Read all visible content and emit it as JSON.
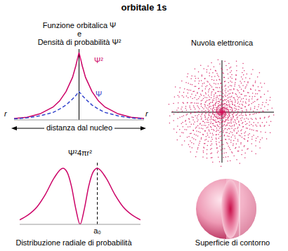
{
  "title": "orbitale 1s",
  "chart_data": [
    {
      "type": "line",
      "title": [
        "Funzione orbitalica Ψ",
        "e",
        "Densità di probabilità Ψ²"
      ],
      "xlabel": "distanza dal nucleo",
      "x_end_label": "r",
      "x": [
        -5,
        -4,
        -3,
        -2,
        -1.5,
        -1,
        -0.5,
        -0.25,
        0,
        0.25,
        0.5,
        1,
        1.5,
        2,
        3,
        4,
        5
      ],
      "xlim": [
        -5,
        5
      ],
      "ylim": [
        0,
        1.05
      ],
      "tick_labels": false,
      "series": [
        {
          "name": "Ψ²",
          "color": "#cc0066",
          "line_style": "solid",
          "values": [
            0.02,
            0.04,
            0.09,
            0.19,
            0.28,
            0.42,
            0.63,
            0.8,
            1,
            0.8,
            0.63,
            0.42,
            0.28,
            0.19,
            0.09,
            0.04,
            0.02
          ]
        },
        {
          "name": "Ψ",
          "color": "#3344cc",
          "line_style": "dashed",
          "values": [
            0.015,
            0.03,
            0.06,
            0.11,
            0.16,
            0.22,
            0.31,
            0.36,
            0.42,
            0.36,
            0.31,
            0.22,
            0.16,
            0.11,
            0.06,
            0.03,
            0.015
          ]
        }
      ]
    },
    {
      "type": "line",
      "title": "Distribuzione radiale di probabilità",
      "ylabel": "Ψ²4πr²",
      "x": [
        -3.5,
        -3,
        -2.5,
        -2,
        -1.5,
        -1,
        -0.75,
        -0.5,
        -0.25,
        0,
        0.25,
        0.5,
        0.75,
        1,
        1.5,
        2,
        2.5,
        3,
        3.5
      ],
      "xlim": [
        -3.5,
        3.5
      ],
      "ylim": [
        0,
        1.1
      ],
      "tick_labels": false,
      "annotations": [
        {
          "text": "a₀",
          "x": 1
        }
      ],
      "series": [
        {
          "color": "#cc0066",
          "line_style": "solid",
          "values": [
            0.08,
            0.17,
            0.31,
            0.54,
            0.83,
            1,
            0.93,
            0.68,
            0.28,
            0,
            0.28,
            0.68,
            0.93,
            1,
            0.83,
            0.54,
            0.31,
            0.17,
            0.08
          ]
        }
      ]
    }
  ],
  "panels": [
    {
      "title": "Nuvola elettronica"
    },
    {
      "title": "Superficie di contorno"
    }
  ]
}
